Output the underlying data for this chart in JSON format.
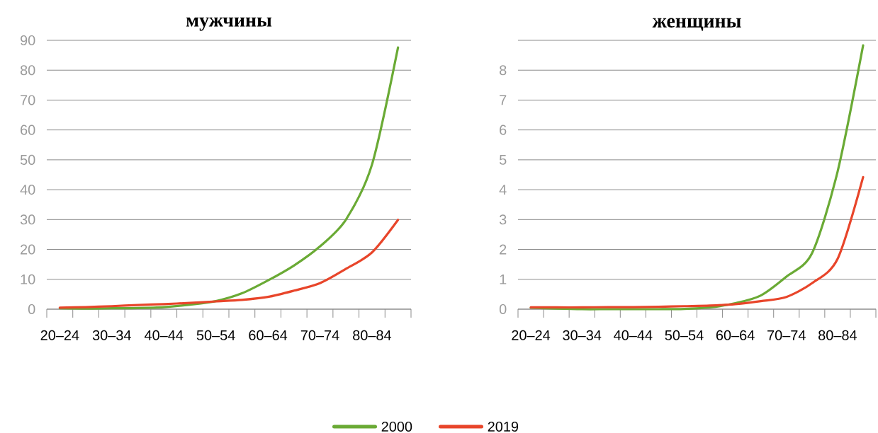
{
  "chart_data": [
    {
      "type": "line",
      "title": "мужчины",
      "categories": [
        "20–24",
        null,
        "30–34",
        null,
        "40–44",
        null,
        "50–54",
        null,
        "60–64",
        null,
        "70–74",
        null,
        "80–84",
        null
      ],
      "series": [
        {
          "name": "2000",
          "color": "#6aaa35",
          "values": [
            0.3,
            0.2,
            0.3,
            0.4,
            0.7,
            1.5,
            2.7,
            5.3,
            9.6,
            14.6,
            21,
            30,
            48.4,
            87.6
          ]
        },
        {
          "name": "2019",
          "color": "#e8452a",
          "values": [
            0.5,
            0.7,
            1.0,
            1.4,
            1.7,
            2.1,
            2.6,
            3.1,
            4.1,
            6.2,
            8.7,
            13.5,
            19,
            29.9
          ]
        }
      ],
      "ylim": [
        0,
        90
      ],
      "yticks": [
        0,
        10,
        20,
        30,
        40,
        50,
        60,
        70,
        80,
        90
      ],
      "grid": "y",
      "legend": "bottom",
      "line_style": "solid",
      "marker": "none"
    },
    {
      "type": "line",
      "title": "женщины",
      "categories": [
        "20–24",
        null,
        "30–34",
        null,
        "40–44",
        null,
        "50–54",
        null,
        "60–64",
        null,
        "70–74",
        null,
        "80–84",
        null
      ],
      "series": [
        {
          "color": "#6aaa35",
          "values": [
            0.05,
            0.02,
            0,
            0,
            0,
            0,
            0.01,
            0.06,
            0.2,
            0.46,
            1.09,
            1.87,
            4.6,
            8.83
          ]
        },
        {
          "color": "#e8452a",
          "values": [
            0.06,
            0.06,
            0.06,
            0.07,
            0.07,
            0.08,
            0.1,
            0.12,
            0.17,
            0.27,
            0.41,
            0.87,
            1.68,
            4.42
          ]
        }
      ],
      "ylim": [
        0,
        9
      ],
      "yticks": [
        0,
        1,
        2,
        3,
        4,
        5,
        6,
        7,
        8,
        {
          "value": 9,
          "label": null
        }
      ],
      "grid": "y",
      "line_style": "solid",
      "marker": "none"
    }
  ]
}
